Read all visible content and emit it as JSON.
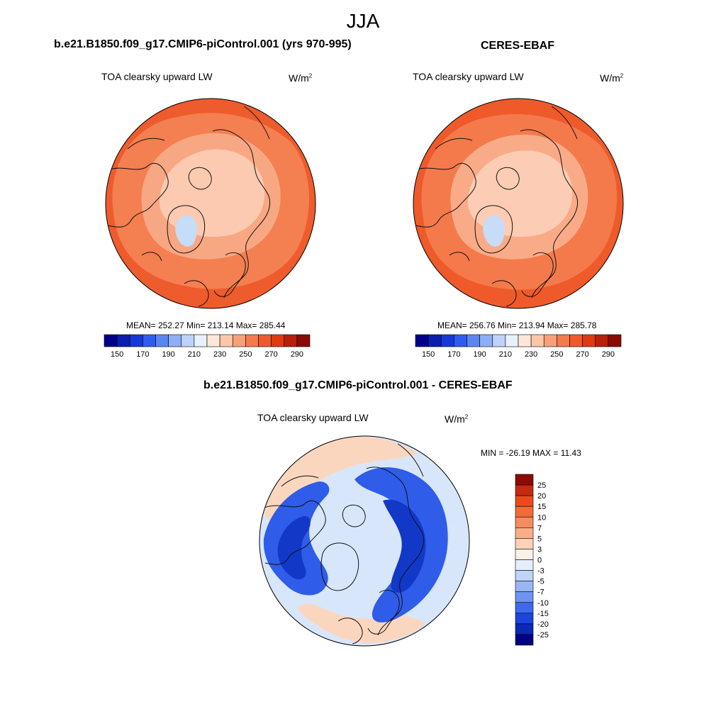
{
  "figure": {
    "season": "JJA"
  },
  "panels": {
    "model": {
      "title": "b.e21.B1850.f09_g17.CMIP6-piControl.001 (yrs 970-995)",
      "variable": "TOA clearsky upward LW",
      "units": "W/m",
      "units_exp": "2",
      "stats": "MEAN= 252.27  Min= 213.14  Max= 285.44"
    },
    "obs": {
      "title": "CERES-EBAF",
      "variable": "TOA clearsky upward LW",
      "units": "W/m",
      "units_exp": "2",
      "stats": "MEAN= 256.76  Min= 213.94  Max= 285.78"
    },
    "diff": {
      "title": "b.e21.B1850.f09_g17.CMIP6-piControl.001 - CERES-EBAF",
      "variable": "TOA clearsky upward LW",
      "units": "W/m",
      "units_exp": "2",
      "stats": "MIN = -26.19 MAX =  11.43"
    }
  },
  "colorbars": {
    "abs": {
      "ticks": [
        "150",
        "170",
        "190",
        "210",
        "230",
        "250",
        "270",
        "290"
      ],
      "colors": [
        "#00008a",
        "#0a1fb0",
        "#1638d8",
        "#2f5cf0",
        "#5b86f2",
        "#8eaff5",
        "#bed3f9",
        "#e8f0fd",
        "#fde7d8",
        "#fbc7a8",
        "#f8a07a",
        "#f57a4e",
        "#f05a2a",
        "#df3a12",
        "#b8200a",
        "#8a0b04"
      ]
    },
    "diff": {
      "labels": [
        "25",
        "20",
        "15",
        "10",
        "7",
        "5",
        "3",
        "0",
        "-3",
        "-5",
        "-7",
        "-10",
        "-15",
        "-20",
        "-25"
      ],
      "colors": [
        "#8a0b04",
        "#c52a0e",
        "#ec4a1c",
        "#f56a36",
        "#f78c5e",
        "#f9ae88",
        "#fbd3b8",
        "#fdf0e6",
        "#e4eefc",
        "#c0d4f8",
        "#98b6f4",
        "#6f93f0",
        "#3f6aee",
        "#1c45de",
        "#0c28b6",
        "#000082"
      ]
    }
  },
  "map_colors": {
    "model": {
      "outer": "#ee5b2c",
      "mid": "#f47f50",
      "inner": "#f8a783",
      "core": "#fbcab0",
      "ice_sheet": "#c6dcf7"
    },
    "obs": {
      "outer": "#ef5a2b",
      "mid": "#f47a4c",
      "inner": "#f9ab87",
      "core": "#fccdb4",
      "ice_sheet": "#c6dcf7"
    },
    "diff": {
      "base": "#d8e6fb",
      "warm": "#fbd6bf",
      "cold": "#2f5ce8",
      "deep": "#1238c8"
    }
  }
}
